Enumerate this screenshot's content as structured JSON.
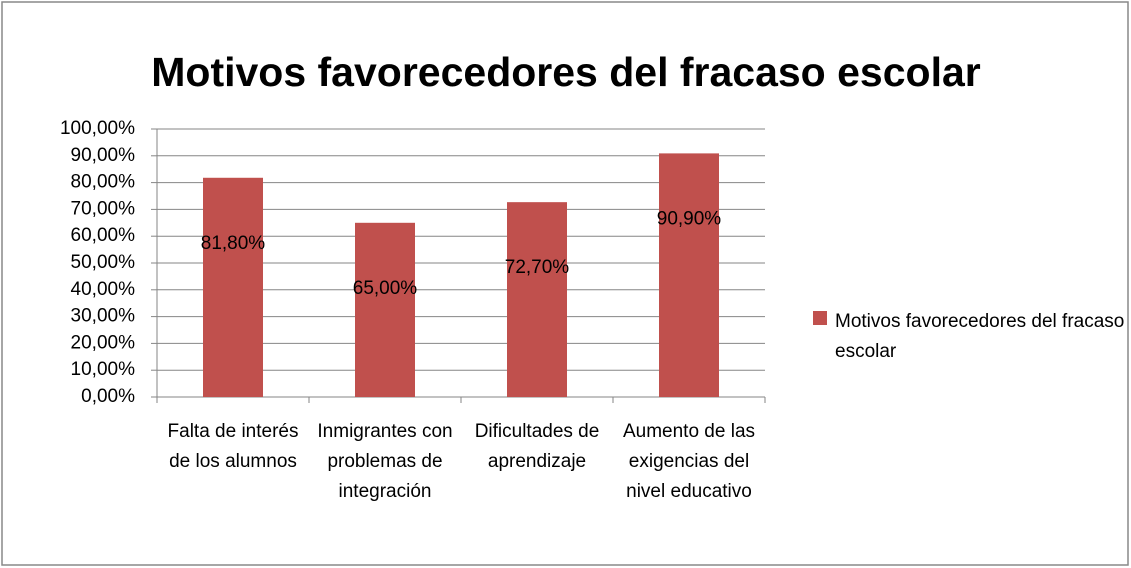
{
  "chart_data": {
    "type": "bar",
    "title": "Motivos favorecedores del fracaso escolar",
    "categories": [
      "Falta de interés de los alumnos",
      "Inmigrantes con problemas de integración",
      "Dificultades de aprendizaje",
      "Aumento de las exigencias del nivel educativo"
    ],
    "series": [
      {
        "name": "Motivos favorecedores del fracaso escolar",
        "color": "#c0504d",
        "values": [
          81.8,
          65,
          72.7,
          90.9
        ],
        "value_labels": [
          "81,80%",
          "65,00%",
          "72,70%",
          "90,90%"
        ]
      }
    ],
    "ylim": [
      0,
      100
    ],
    "yticks": [
      {
        "value": 0,
        "label": "0,00%"
      },
      {
        "value": 10,
        "label": "10,00%"
      },
      {
        "value": 20,
        "label": "20,00%"
      },
      {
        "value": 30,
        "label": "30,00%"
      },
      {
        "value": 40,
        "label": "40,00%"
      },
      {
        "value": 50,
        "label": "50,00%"
      },
      {
        "value": 60,
        "label": "60,00%"
      },
      {
        "value": 70,
        "label": "70,00%"
      },
      {
        "value": 80,
        "label": "80,00%"
      },
      {
        "value": 90,
        "label": "90,00%"
      },
      {
        "value": 100,
        "label": "100,00%"
      }
    ],
    "grid": true,
    "legend": "right"
  }
}
